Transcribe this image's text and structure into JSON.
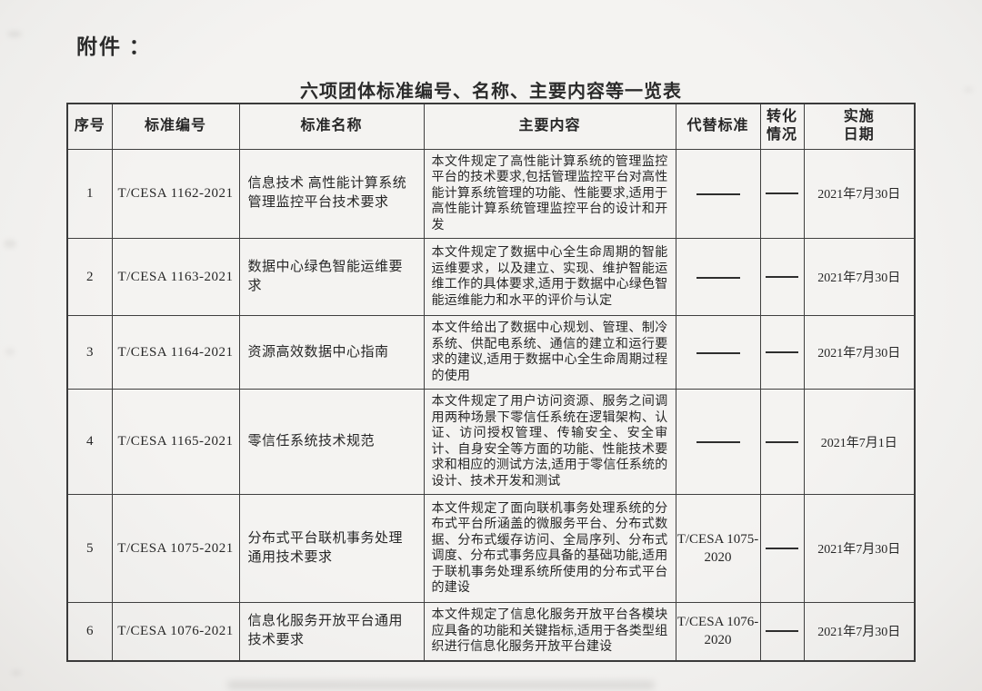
{
  "page": {
    "attachment_label": "附件 ：",
    "title": "六项团体标准编号、名称、主要内容等一览表",
    "ink_color": "#2b2b2b",
    "paper_color": "#f3f2f0"
  },
  "table": {
    "columns": [
      {
        "key": "index",
        "label": "序号"
      },
      {
        "key": "code",
        "label": "标准编号"
      },
      {
        "key": "name",
        "label": "标准名称"
      },
      {
        "key": "content",
        "label": "主要内容"
      },
      {
        "key": "replaces",
        "label": "代替标准"
      },
      {
        "key": "transform",
        "label": "转化\n情况"
      },
      {
        "key": "date",
        "label": "实施\n日期"
      }
    ],
    "empty_marker": "——",
    "rows": [
      {
        "index": "1",
        "code": "T/CESA 1162-2021",
        "name": "信息技术 高性能计算系统管理监控平台技术要求",
        "content": "本文件规定了高性能计算系统的管理监控平台的技术要求,包括管理监控平台对高性能计算系统管理的功能、性能要求,适用于高性能计算系统管理监控平台的设计和开发",
        "replaces": "——",
        "transform": "——",
        "date": "2021年7月30日"
      },
      {
        "index": "2",
        "code": "T/CESA 1163-2021",
        "name": "数据中心绿色智能运维要求",
        "content": "本文件规定了数据中心全生命周期的智能运维要求，以及建立、实现、维护智能运维工作的具体要求,适用于数据中心绿色智能运维能力和水平的评价与认定",
        "replaces": "——",
        "transform": "——",
        "date": "2021年7月30日"
      },
      {
        "index": "3",
        "code": "T/CESA 1164-2021",
        "name": "资源高效数据中心指南",
        "content": "本文件给出了数据中心规划、管理、制冷系统、供配电系统、通信的建立和运行要求的建议,适用于数据中心全生命周期过程的使用",
        "replaces": "——",
        "transform": "——",
        "date": "2021年7月30日"
      },
      {
        "index": "4",
        "code": "T/CESA 1165-2021",
        "name": "零信任系统技术规范",
        "content": "本文件规定了用户访问资源、服务之间调用两种场景下零信任系统在逻辑架构、认证、访问授权管理、传输安全、安全审计、自身安全等方面的功能、性能技术要求和相应的测试方法,适用于零信任系统的设计、技术开发和测试",
        "replaces": "——",
        "transform": "——",
        "date": "2021年7月1日"
      },
      {
        "index": "5",
        "code": "T/CESA 1075-2021",
        "name": "分布式平台联机事务处理通用技术要求",
        "content": "本文件规定了面向联机事务处理系统的分布式平台所涵盖的微服务平台、分布式数据、分布式缓存访问、全局序列、分布式调度、分布式事务应具备的基础功能,适用于联机事务处理系统所使用的分布式平台的建设",
        "replaces": "T/CESA 1075-2020",
        "transform": "——",
        "date": "2021年7月30日"
      },
      {
        "index": "6",
        "code": "T/CESA 1076-2021",
        "name": "信息化服务开放平台通用技术要求",
        "content": "本文件规定了信息化服务开放平台各模块应具备的功能和关键指标,适用于各类型组织进行信息化服务开放平台建设",
        "replaces": "T/CESA 1076-2020",
        "transform": "——",
        "date": "2021年7月30日"
      }
    ]
  }
}
